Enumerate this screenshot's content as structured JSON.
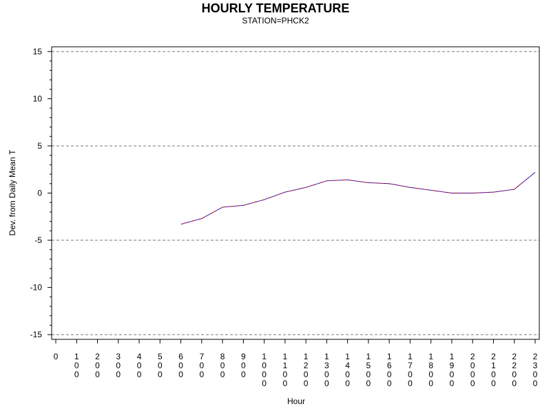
{
  "chart_data": {
    "type": "line",
    "title": "HOURLY TEMPERATURE",
    "subtitle": "STATION=PHCK2",
    "xlabel": "Hour",
    "ylabel": "Dev. from Daily Mean T",
    "x_tick_labels": [
      "0",
      "100",
      "200",
      "300",
      "400",
      "500",
      "600",
      "700",
      "800",
      "900",
      "1000",
      "1100",
      "1200",
      "1300",
      "1400",
      "1500",
      "1600",
      "1700",
      "1800",
      "1900",
      "2000",
      "2100",
      "2200",
      "2300"
    ],
    "y_tick_labels": [
      "15",
      "10",
      "5",
      "0",
      "-5",
      "-10",
      "-15"
    ],
    "y_ticks": [
      15,
      10,
      5,
      0,
      -5,
      -10,
      -15
    ],
    "ylim": [
      -15.5,
      15.5
    ],
    "reference_lines": [
      15,
      5,
      -5,
      -15
    ],
    "grid": false,
    "series": [
      {
        "color": "#cc0000",
        "x": [
          600,
          700,
          800,
          900,
          1000,
          1100,
          1200,
          1300,
          1400,
          1500,
          1600,
          1700,
          1800,
          1900,
          2000,
          2100,
          2200,
          2300
        ],
        "values": [
          -3.3,
          -2.7,
          -1.5,
          -1.3,
          -0.7,
          0.1,
          0.6,
          1.3,
          1.4,
          1.1,
          1.0,
          0.6,
          0.3,
          0.0,
          0.0,
          0.1,
          0.4,
          2.2
        ]
      },
      {
        "color": "#0000cc",
        "x": [
          600,
          700,
          800,
          900,
          1000,
          1100,
          1200,
          1300,
          1400,
          1500,
          1600,
          1700,
          1800,
          1900,
          2000,
          2100,
          2200,
          2300
        ],
        "values": [
          -3.3,
          -2.7,
          -1.5,
          -1.3,
          -0.7,
          0.1,
          0.6,
          1.3,
          1.4,
          1.1,
          1.0,
          0.6,
          0.3,
          0.0,
          0.0,
          0.1,
          0.4,
          2.2
        ]
      }
    ]
  }
}
